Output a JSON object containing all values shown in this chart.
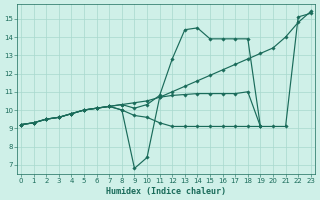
{
  "xlabel": "Humidex (Indice chaleur)",
  "xlim": [
    -0.3,
    23.3
  ],
  "ylim": [
    6.5,
    15.8
  ],
  "xticks": [
    0,
    1,
    2,
    3,
    4,
    5,
    6,
    7,
    8,
    9,
    10,
    11,
    12,
    13,
    14,
    15,
    16,
    17,
    18,
    19,
    20,
    21,
    22,
    23
  ],
  "yticks": [
    7,
    8,
    9,
    10,
    11,
    12,
    13,
    14,
    15
  ],
  "bg_color": "#cff0e8",
  "grid_color": "#a8d8ce",
  "line_color": "#1a6b5a",
  "lines": [
    {
      "x": [
        0,
        1,
        2,
        3,
        4,
        5,
        6,
        7,
        8,
        9,
        10,
        11,
        12,
        13,
        14,
        15,
        16,
        17,
        18,
        19,
        20,
        21,
        22,
        23
      ],
      "y": [
        9.2,
        9.3,
        9.5,
        9.6,
        9.8,
        10.0,
        10.1,
        10.2,
        10.3,
        10.4,
        10.5,
        10.7,
        11.0,
        11.3,
        11.6,
        11.9,
        12.2,
        12.5,
        12.8,
        13.1,
        13.4,
        14.0,
        14.8,
        15.4
      ]
    },
    {
      "x": [
        0,
        1,
        2,
        3,
        4,
        5,
        6,
        7,
        8,
        9,
        10,
        11,
        12,
        13,
        14,
        15,
        16,
        17,
        18,
        19
      ],
      "y": [
        9.2,
        9.3,
        9.5,
        9.6,
        9.8,
        10.0,
        10.1,
        10.2,
        10.3,
        10.1,
        10.3,
        10.8,
        12.8,
        14.4,
        14.5,
        13.9,
        13.9,
        13.9,
        13.9,
        9.1
      ]
    },
    {
      "x": [
        0,
        1,
        2,
        3,
        4,
        5,
        6,
        7,
        8,
        9,
        10,
        11,
        12,
        13,
        14,
        15,
        16,
        17,
        18,
        19,
        20,
        21,
        22,
        23
      ],
      "y": [
        9.2,
        9.3,
        9.5,
        9.6,
        9.8,
        10.0,
        10.1,
        10.2,
        10.0,
        6.8,
        7.4,
        10.7,
        10.8,
        10.85,
        10.9,
        10.9,
        10.9,
        10.9,
        11.0,
        9.1,
        9.1,
        9.1,
        15.1,
        15.3
      ]
    },
    {
      "x": [
        0,
        1,
        2,
        3,
        4,
        5,
        6,
        7,
        8,
        9,
        10,
        11,
        12,
        13,
        14,
        15,
        16,
        17,
        18,
        19
      ],
      "y": [
        9.2,
        9.3,
        9.5,
        9.6,
        9.8,
        10.0,
        10.1,
        10.2,
        10.0,
        9.7,
        9.6,
        9.3,
        9.1,
        9.1,
        9.1,
        9.1,
        9.1,
        9.1,
        9.1,
        9.1
      ]
    }
  ]
}
